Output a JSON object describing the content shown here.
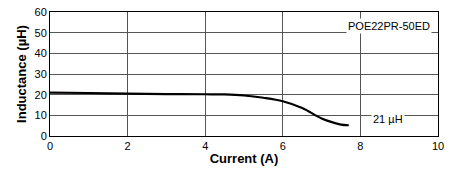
{
  "chart_data": {
    "type": "line",
    "x_label": "Current (A)",
    "y_label": "Inductance (µH)",
    "annotations": [
      "POE22PR-50ED",
      "21 µH"
    ],
    "x": [
      0,
      1,
      2,
      3,
      4,
      4.5,
      5,
      5.5,
      6,
      6.5,
      7,
      7.3,
      7.5,
      7.7
    ],
    "values": [
      21,
      20.8,
      20.5,
      20.3,
      20.2,
      20.1,
      19.6,
      18.5,
      16.8,
      13.5,
      8.5,
      6.5,
      5.5,
      5.2
    ],
    "color": "#000000",
    "xlim": [
      0,
      10
    ],
    "xticks": [
      0,
      2,
      4,
      6,
      8,
      10
    ],
    "ylim": [
      0,
      60
    ],
    "yticks": [
      0,
      10,
      20,
      30,
      40,
      50,
      60
    ],
    "grid": true
  }
}
